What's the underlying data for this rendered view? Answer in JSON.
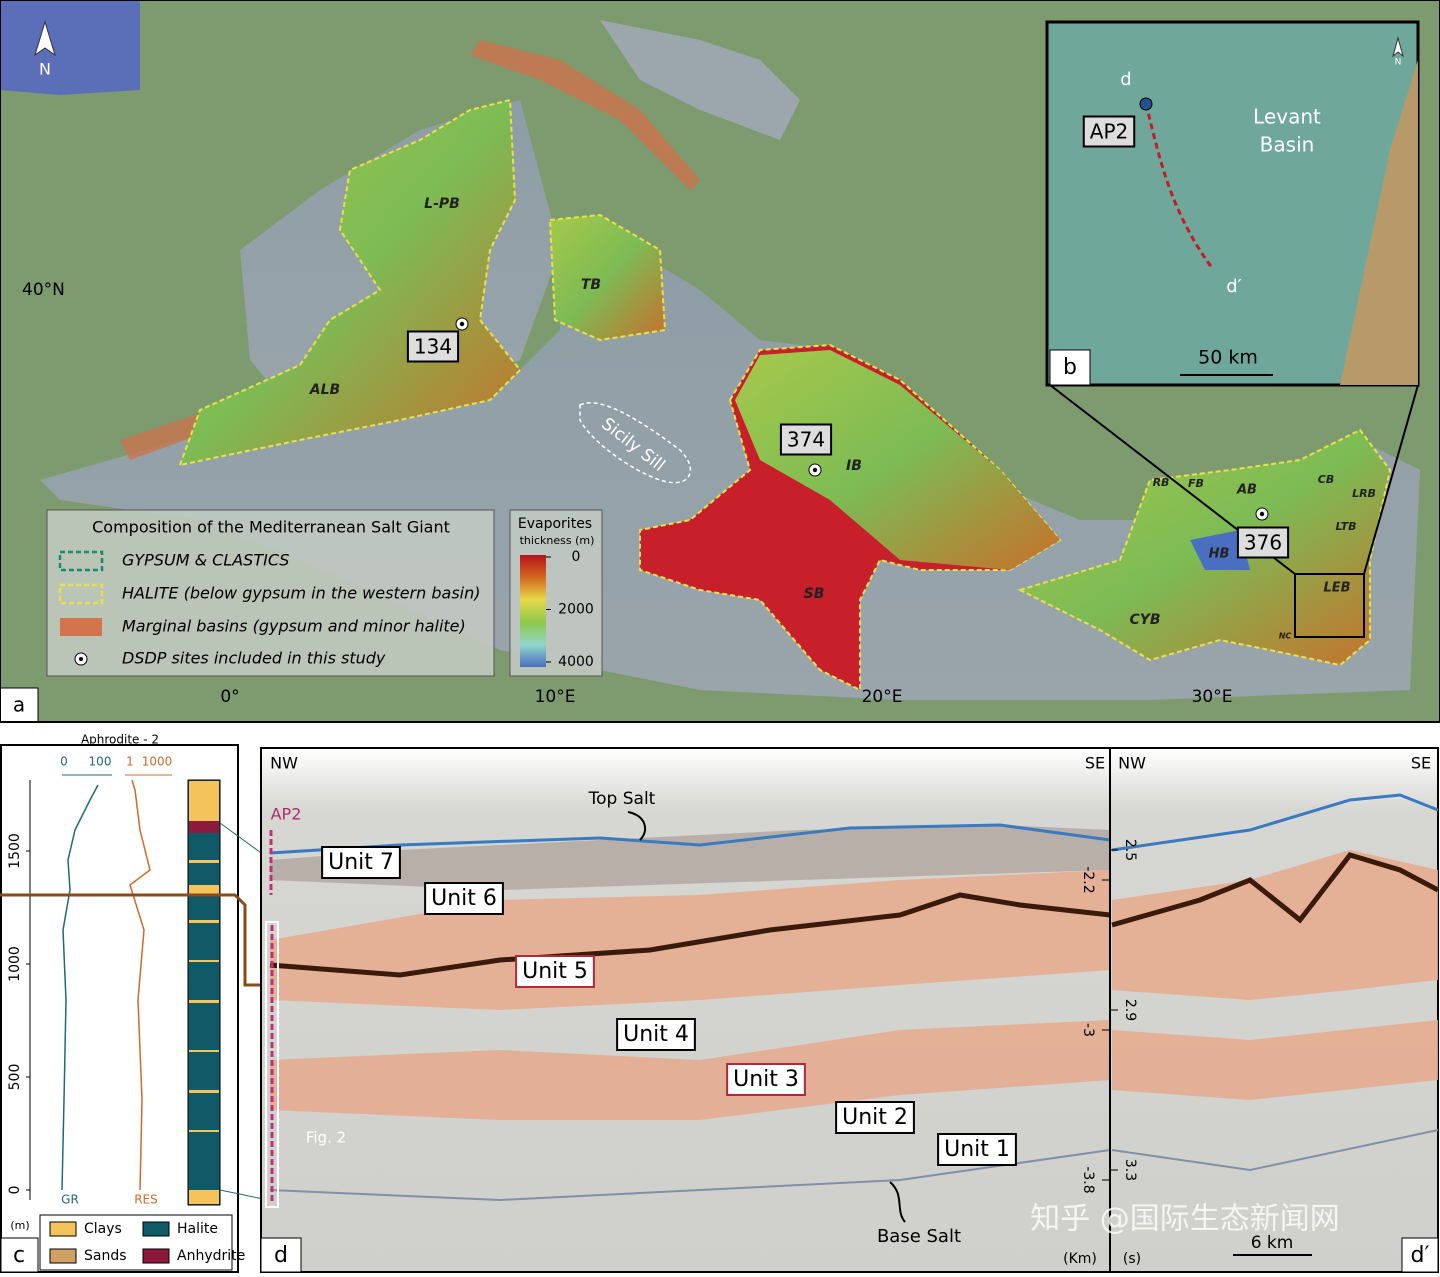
{
  "panel_a": {
    "letter": "a",
    "north": "N",
    "lat_label": "40°N",
    "lon_labels": [
      "0°",
      "10°E",
      "20°E",
      "30°E"
    ],
    "basins": [
      "L-PB",
      "TB",
      "ALB",
      "IB",
      "SB",
      "CYB",
      "RB",
      "FB",
      "AB",
      "CB",
      "LRB",
      "LTB",
      "HB",
      "LEB",
      "NC"
    ],
    "sites": [
      "134",
      "374",
      "376"
    ],
    "sicily_sill": "Sicily Sill",
    "legend": {
      "title": "Composition of the Mediterranean Salt Giant",
      "items": [
        "GYPSUM & CLASTICS",
        "HALITE (below gypsum in the western basin)",
        "Marginal basins (gypsum and minor halite)",
        "DSDP sites included in this study"
      ]
    },
    "colorbar": {
      "title": "Evaporites",
      "subtitle": "thickness (m)",
      "ticks": [
        0,
        2000,
        4000
      ]
    }
  },
  "panel_b": {
    "letter": "b",
    "north": "N",
    "start": "d",
    "end": "d′",
    "well": "AP2",
    "region": [
      "Levant",
      "Basin"
    ],
    "scale": "50 km"
  },
  "panel_c": {
    "letter": "c",
    "title": "Aphrodite - 2",
    "gr_ticks": [
      0,
      100
    ],
    "res_ticks": [
      1,
      1000
    ],
    "gr_label": "GR",
    "res_label": "RES",
    "depth_ticks": [
      0,
      500,
      1000,
      1500
    ],
    "depth_unit": "(m)",
    "lithology": [
      "Clays",
      "Halite",
      "Sands",
      "Anhydrite"
    ]
  },
  "panel_d": {
    "letter": "d",
    "letter2": "d′",
    "left_ends": [
      "NW",
      "SE"
    ],
    "right_ends": [
      "NW",
      "SE"
    ],
    "well": "AP2",
    "top_salt": "Top Salt",
    "base_salt": "Base Salt",
    "units": [
      "Unit 7",
      "Unit 6",
      "Unit 5",
      "Unit 4",
      "Unit 3",
      "Unit 2",
      "Unit 1"
    ],
    "fig_ref": "Fig. 2",
    "km_unit": "(Km)",
    "km_ticks": [
      -2.2,
      -3.0,
      -3.8
    ],
    "s_unit": "(s)",
    "s_ticks": [
      2.5,
      2.9,
      3.3
    ],
    "scale": "6 km"
  },
  "watermark": "知乎 @国际生态新闻网"
}
